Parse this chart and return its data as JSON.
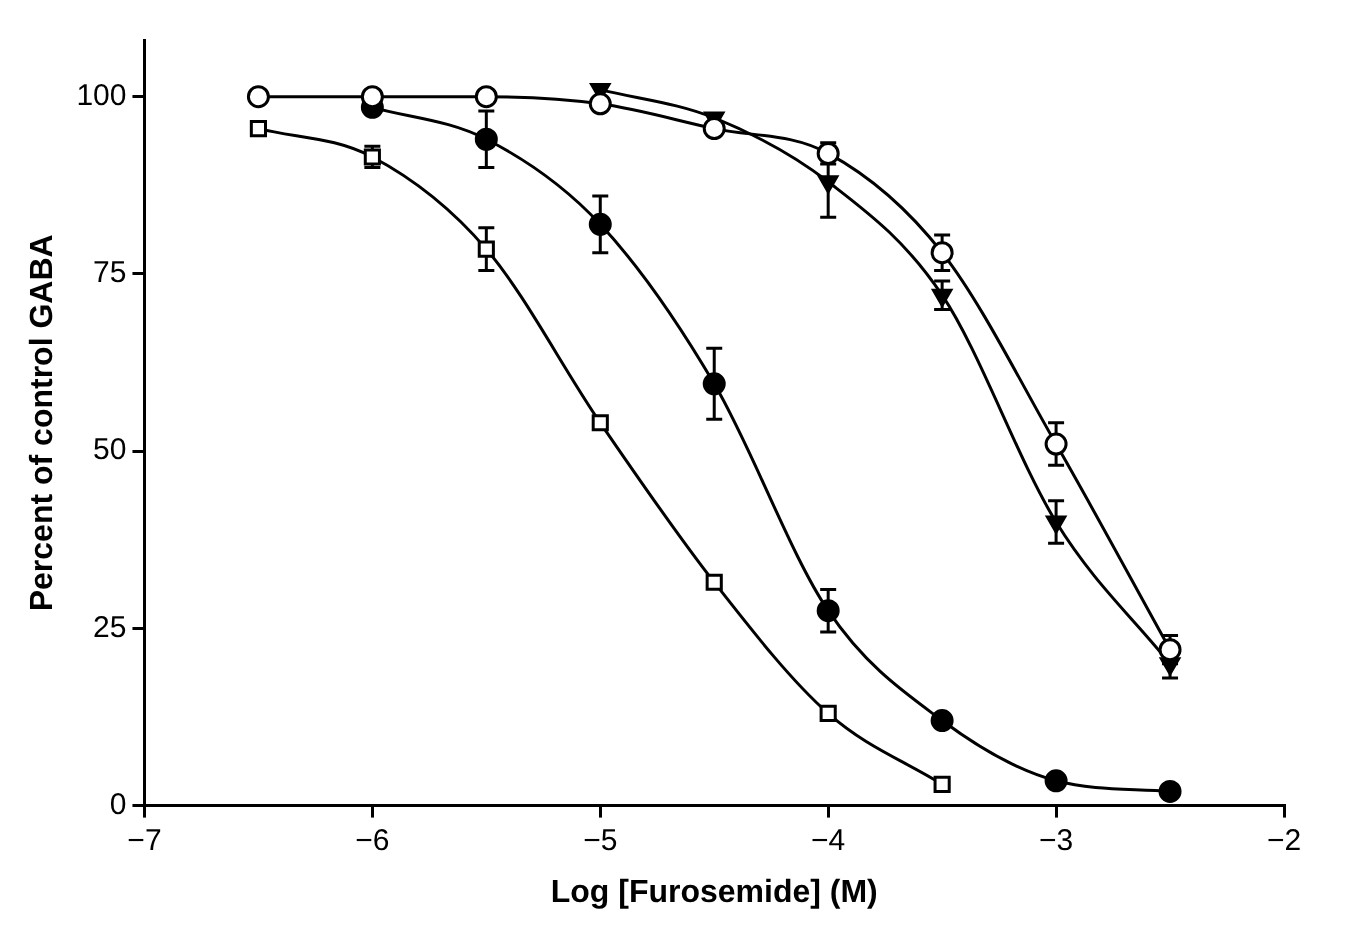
{
  "chart_data": {
    "type": "line",
    "xlabel": "Log [Furosemide] (M)",
    "ylabel": "Percent of control GABA",
    "xlim": [
      -7,
      -2
    ],
    "xticks": [
      -7,
      -6,
      -5,
      -4,
      -3,
      -2
    ],
    "ylim": [
      0,
      108
    ],
    "yticks": [
      0,
      25,
      50,
      75,
      100
    ],
    "grid": false,
    "legend": false,
    "line_style": "solid",
    "series": [
      {
        "color": "#ffffff",
        "marker": "circle",
        "x": [
          -6.5,
          -6,
          -5.5,
          -5,
          -4.5,
          -4,
          -3.5,
          -3,
          -2.5
        ],
        "values": [
          100,
          100,
          100,
          99,
          95.5,
          92,
          78,
          51,
          22
        ],
        "errors": [
          null,
          null,
          null,
          null,
          null,
          1.5,
          2.5,
          3,
          2
        ]
      },
      {
        "color": "#000000",
        "marker": "triangle",
        "x": [
          -5,
          -4.5,
          -4,
          -3.5,
          -3,
          -2.5
        ],
        "values": [
          101,
          97,
          88,
          72,
          40,
          20
        ],
        "errors": [
          null,
          null,
          5,
          2,
          3,
          2
        ]
      },
      {
        "color": "#000000",
        "marker": "circle",
        "x": [
          -6,
          -5.5,
          -5,
          -4.5,
          -4,
          -3.5,
          -3,
          -2.5
        ],
        "values": [
          98.5,
          94,
          82,
          59.5,
          27.5,
          12,
          3.5,
          2
        ],
        "errors": [
          null,
          4,
          4,
          5,
          3,
          null,
          null,
          null
        ]
      },
      {
        "color": "#ffffff",
        "marker": "square",
        "x": [
          -6.5,
          -6,
          -5.5,
          -5,
          -4.5,
          -4,
          -3.5
        ],
        "values": [
          95.5,
          91.5,
          78.5,
          54,
          31.5,
          13,
          3
        ],
        "errors": [
          null,
          1.5,
          3,
          null,
          null,
          null,
          null
        ]
      }
    ]
  }
}
